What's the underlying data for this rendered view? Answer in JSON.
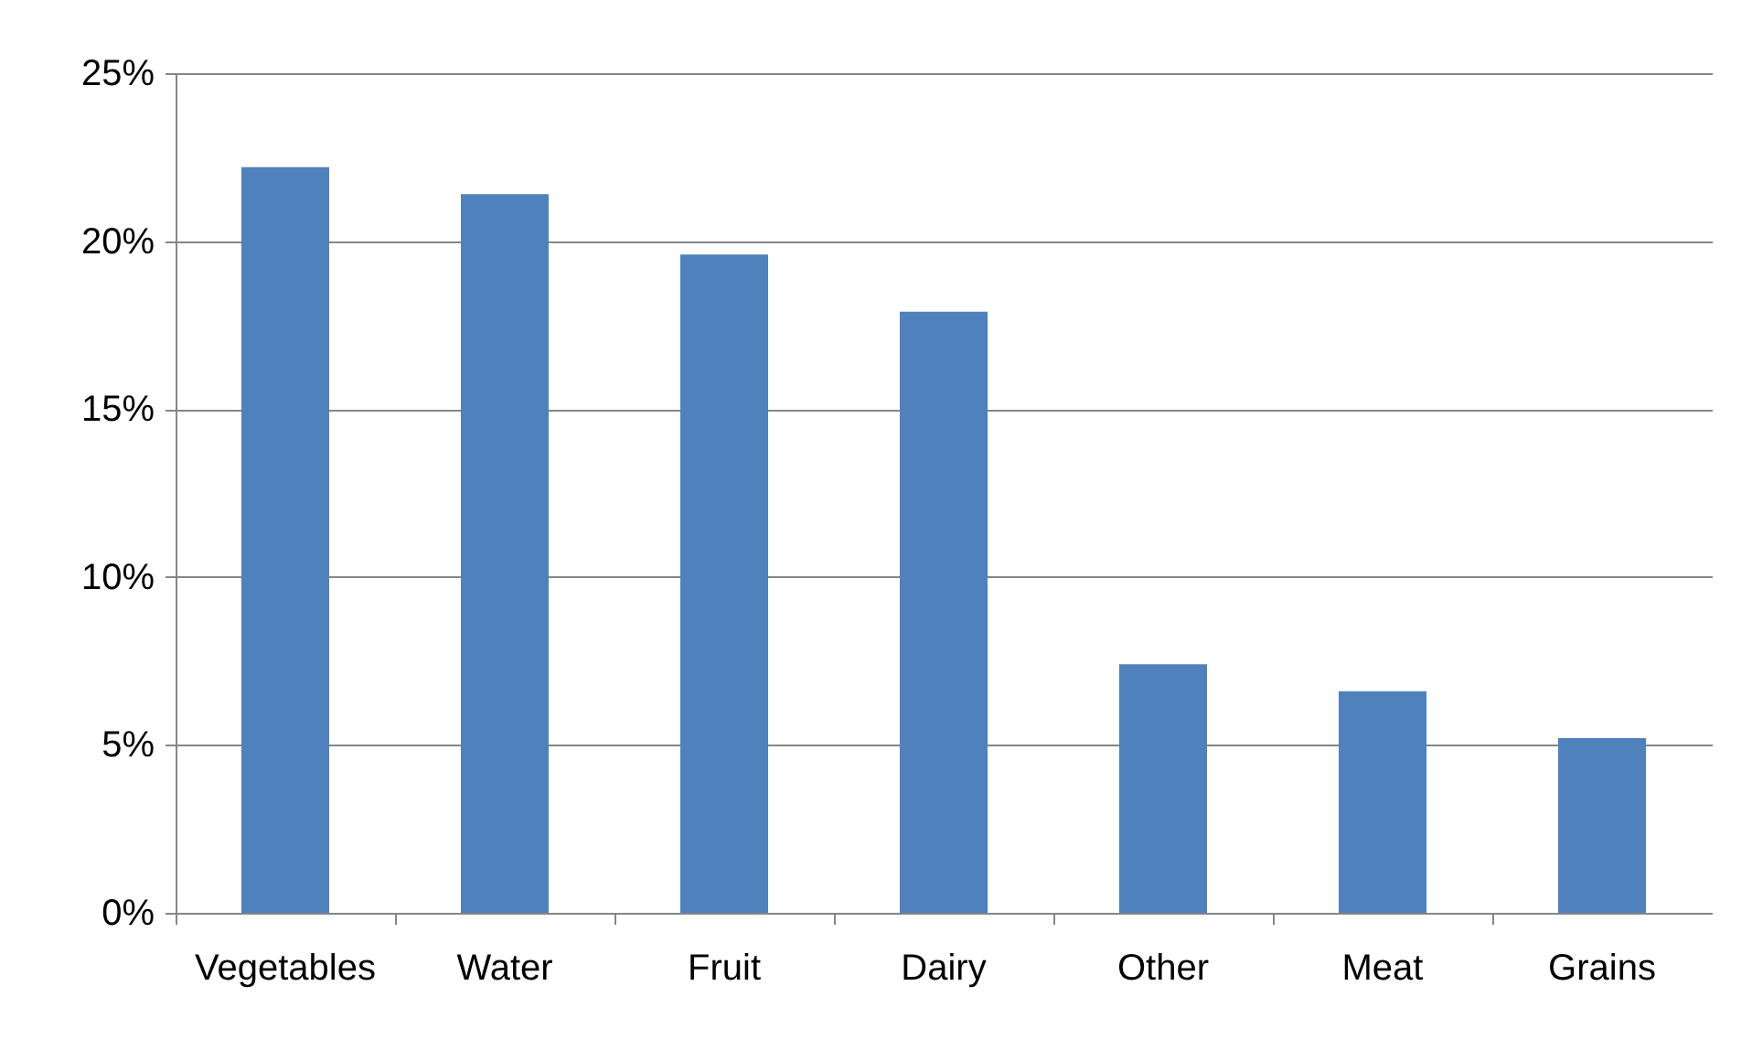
{
  "chart_data": {
    "type": "bar",
    "categories": [
      "Vegetables",
      "Water",
      "Fruit",
      "Dairy",
      "Other",
      "Meat",
      "Grains"
    ],
    "series": [
      {
        "color": "#4f81bd",
        "values": [
          22.2,
          21.4,
          19.6,
          17.9,
          7.4,
          6.6,
          5.2
        ]
      }
    ],
    "ylim": [
      0,
      25
    ],
    "yticks": [
      {
        "value": 0,
        "label": "0%"
      },
      {
        "value": 5,
        "label": "5%"
      },
      {
        "value": 10,
        "label": "10%"
      },
      {
        "value": 15,
        "label": "15%"
      },
      {
        "value": 20,
        "label": "20%"
      },
      {
        "value": 25,
        "label": "25%"
      }
    ],
    "grid": "y"
  }
}
